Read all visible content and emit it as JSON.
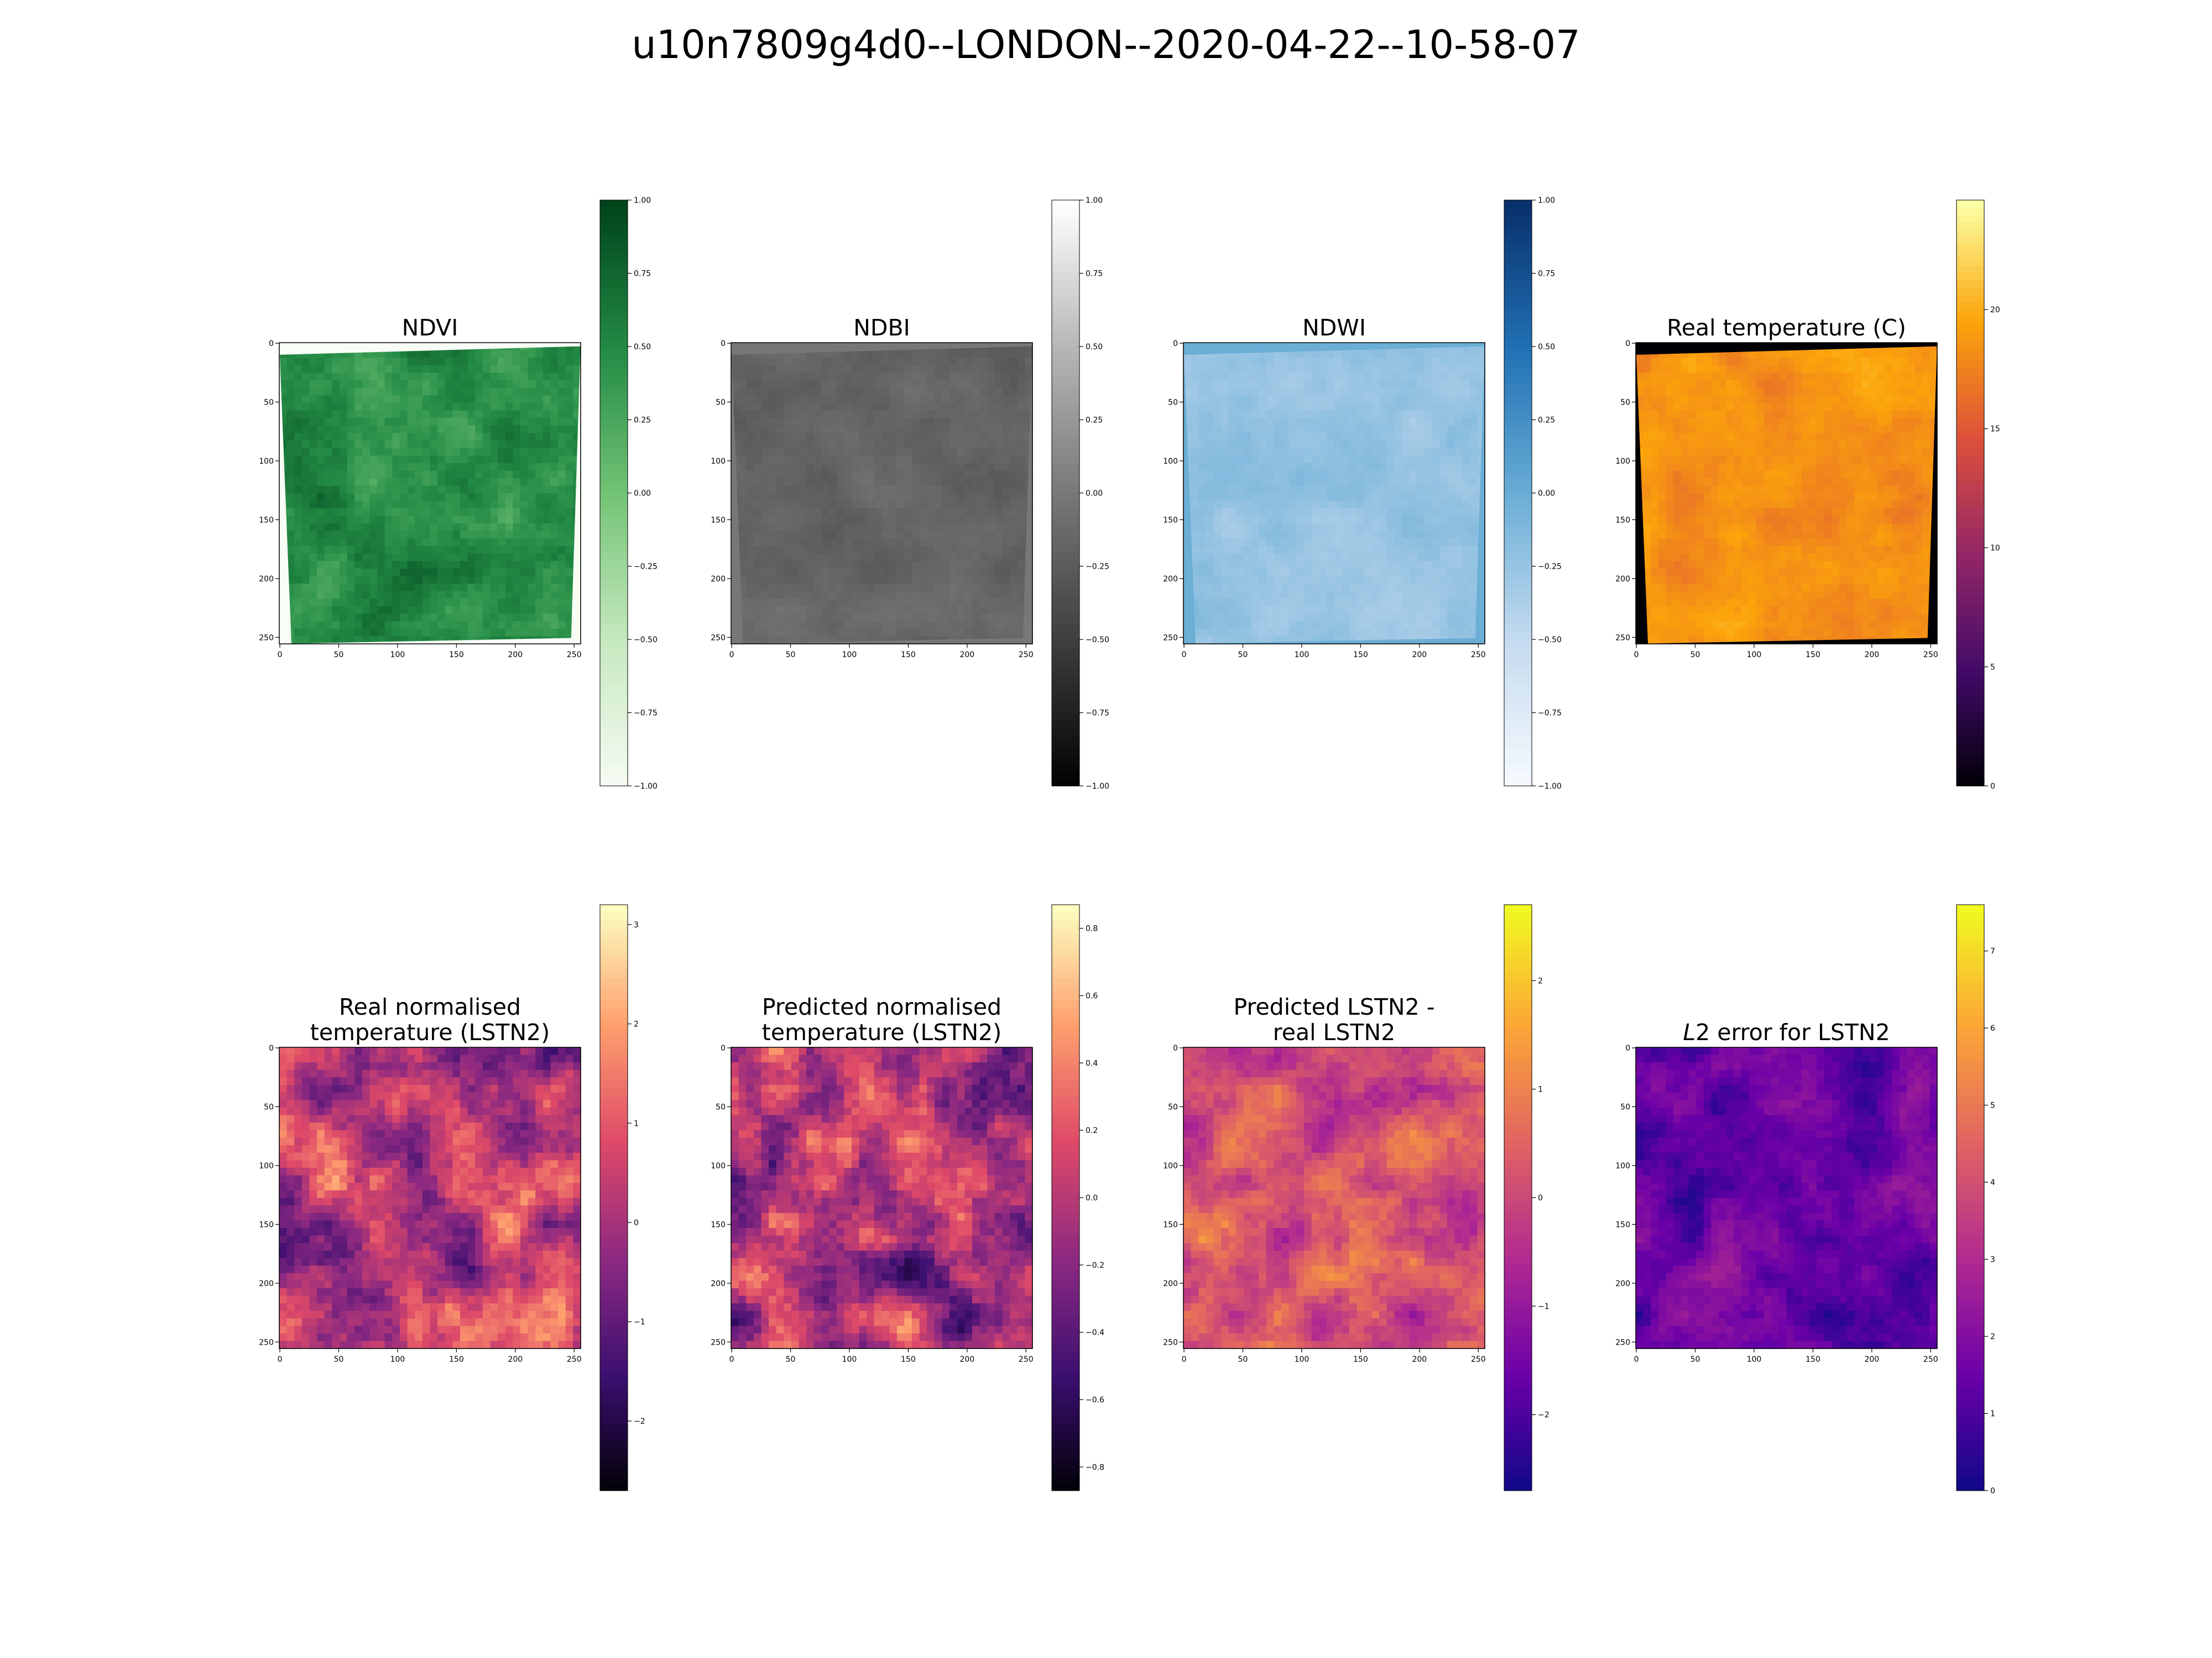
{
  "figure_title": "u10n7809g4d0--LONDON--2020-04-22--10-58-07",
  "chart_data": [
    {
      "type": "heatmap",
      "title": "NDVI",
      "cmap": "Greens",
      "stops": [
        "#f7fcf5",
        "#c7e9c0",
        "#74c476",
        "#238b45",
        "#00441b"
      ],
      "xticks": [
        "0",
        "50",
        "100",
        "150",
        "200",
        "250"
      ],
      "yticks": [
        "0",
        "50",
        "100",
        "150",
        "200",
        "250"
      ],
      "clim": [
        -1.0,
        1.0
      ],
      "cbar_ticks": [
        "−1.00",
        "−0.75",
        "−0.50",
        "−0.25",
        "0.00",
        "0.25",
        "0.50",
        "0.75",
        "1.00"
      ],
      "range": [
        0.55,
        0.95
      ],
      "nodata_color": "#f7fcf5"
    },
    {
      "type": "heatmap",
      "title": "NDBI",
      "cmap": "Greys_r",
      "stops": [
        "#000000",
        "#3d3d3d",
        "#777777",
        "#b5b5b5",
        "#ffffff"
      ],
      "xticks": [
        "0",
        "50",
        "100",
        "150",
        "200",
        "250"
      ],
      "yticks": [
        "0",
        "50",
        "100",
        "150",
        "200",
        "250"
      ],
      "clim": [
        -1.0,
        1.0
      ],
      "cbar_ticks": [
        "−1.00",
        "−0.75",
        "−0.50",
        "−0.25",
        "0.00",
        "0.25",
        "0.50",
        "0.75",
        "1.00"
      ],
      "range": [
        0.34,
        0.5
      ],
      "nodata_color": "#777777"
    },
    {
      "type": "heatmap",
      "title": "NDWI",
      "cmap": "Blues",
      "stops": [
        "#f7fbff",
        "#c6dbef",
        "#6baed6",
        "#2171b5",
        "#08306b"
      ],
      "xticks": [
        "0",
        "50",
        "100",
        "150",
        "200",
        "250"
      ],
      "yticks": [
        "0",
        "50",
        "100",
        "150",
        "200",
        "250"
      ],
      "clim": [
        -1.0,
        1.0
      ],
      "cbar_ticks": [
        "−1.00",
        "−0.75",
        "−0.50",
        "−0.25",
        "0.00",
        "0.25",
        "0.50",
        "0.75",
        "1.00"
      ],
      "range": [
        0.3,
        0.46
      ],
      "nodata_color": "#6baed6"
    },
    {
      "type": "heatmap",
      "title": "Real temperature (C)",
      "cmap": "inferno",
      "stops": [
        "#000004",
        "#420a68",
        "#932667",
        "#dd513a",
        "#fca50a",
        "#fcffa4"
      ],
      "xticks": [
        "0",
        "50",
        "100",
        "150",
        "200",
        "250"
      ],
      "yticks": [
        "0",
        "50",
        "100",
        "150",
        "200",
        "250"
      ],
      "clim": [
        0,
        24.6
      ],
      "cbar_ticks": [
        "0",
        "5",
        "10",
        "15",
        "20"
      ],
      "range": [
        0.66,
        0.84
      ],
      "nodata_color": "#000004"
    },
    {
      "type": "heatmap",
      "title": "Real normalised\ntemperature (LSTN2)",
      "cmap": "magma",
      "stops": [
        "#000004",
        "#3b0f70",
        "#8c2981",
        "#de4968",
        "#fe9f6d",
        "#fcfdbf"
      ],
      "xticks": [
        "0",
        "50",
        "100",
        "150",
        "200",
        "250"
      ],
      "yticks": [
        "0",
        "50",
        "100",
        "150",
        "200",
        "250"
      ],
      "clim": [
        -2.7,
        3.2
      ],
      "cbar_ticks": [
        "−2",
        "−1",
        "0",
        "1",
        "2",
        "3"
      ],
      "range": [
        0.1,
        0.88
      ]
    },
    {
      "type": "heatmap",
      "title": "Predicted normalised\ntemperature (LSTN2)",
      "cmap": "magma",
      "stops": [
        "#000004",
        "#3b0f70",
        "#8c2981",
        "#de4968",
        "#fe9f6d",
        "#fcfdbf"
      ],
      "xticks": [
        "0",
        "50",
        "100",
        "150",
        "200",
        "250"
      ],
      "yticks": [
        "0",
        "50",
        "100",
        "150",
        "200",
        "250"
      ],
      "clim": [
        -0.87,
        0.87
      ],
      "cbar_ticks": [
        "−0.8",
        "−0.6",
        "−0.4",
        "−0.2",
        "0.0",
        "0.2",
        "0.4",
        "0.6",
        "0.8"
      ],
      "range": [
        0.05,
        0.9
      ]
    },
    {
      "type": "heatmap",
      "title": "Predicted LSTN2 -\nreal LSTN2",
      "cmap": "plasma",
      "stops": [
        "#0d0887",
        "#6a00a8",
        "#b12a90",
        "#e16462",
        "#fca636",
        "#f0f921"
      ],
      "xticks": [
        "0",
        "50",
        "100",
        "150",
        "200",
        "250"
      ],
      "yticks": [
        "0",
        "50",
        "100",
        "150",
        "200",
        "250"
      ],
      "clim": [
        -2.7,
        2.7
      ],
      "cbar_ticks": [
        "−2",
        "−1",
        "0",
        "1",
        "2"
      ],
      "range": [
        0.25,
        0.82
      ]
    },
    {
      "type": "heatmap",
      "title_italic": "L",
      "title": "2 error for LSTN2",
      "cmap": "plasma",
      "stops": [
        "#0d0887",
        "#6a00a8",
        "#b12a90",
        "#e16462",
        "#fca636",
        "#f0f921"
      ],
      "xticks": [
        "0",
        "50",
        "100",
        "150",
        "200",
        "250"
      ],
      "yticks": [
        "0",
        "50",
        "100",
        "150",
        "200",
        "250"
      ],
      "clim": [
        0,
        7.6
      ],
      "cbar_ticks": [
        "0",
        "1",
        "2",
        "3",
        "4",
        "5",
        "6",
        "7"
      ],
      "range": [
        0.0,
        0.4
      ]
    }
  ]
}
